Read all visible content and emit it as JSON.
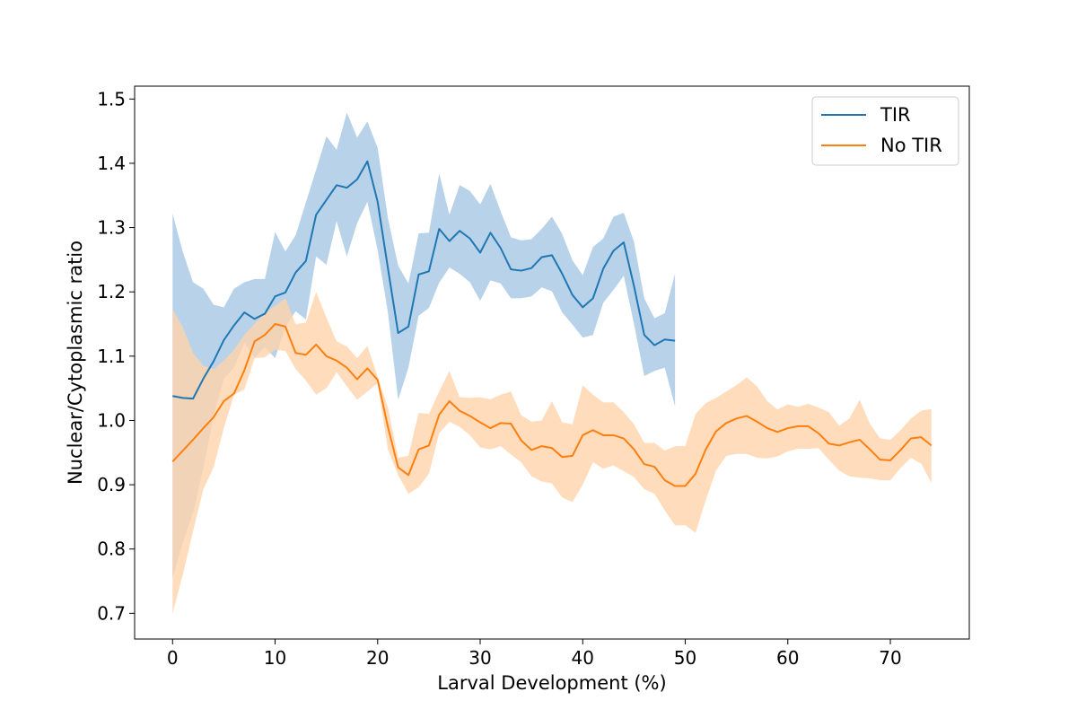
{
  "chart_data": {
    "type": "line",
    "xlabel": "Larval Development (%)",
    "ylabel": "Nuclear/Cytoplasmic ratio",
    "xlim": [
      -3.7,
      77.7
    ],
    "ylim": [
      0.66,
      1.52
    ],
    "xticks": [
      0,
      10,
      20,
      30,
      40,
      50,
      60,
      70
    ],
    "yticks": [
      0.7,
      0.8,
      0.9,
      1.0,
      1.1,
      1.2,
      1.3,
      1.4,
      1.5
    ],
    "xtick_labels": [
      "0",
      "10",
      "20",
      "30",
      "40",
      "50",
      "60",
      "70"
    ],
    "ytick_labels": [
      "0.7",
      "0.8",
      "0.9",
      "1.0",
      "1.1",
      "1.2",
      "1.3",
      "1.4",
      "1.5"
    ],
    "grid": false,
    "legend_position": "top-right",
    "series": [
      {
        "name": "TIR",
        "color": "#1f77b4",
        "band_color": "#a6c8e4",
        "x": [
          0,
          1,
          2,
          3,
          4,
          5,
          6,
          7,
          8,
          9,
          10,
          11,
          12,
          13,
          14,
          15,
          16,
          17,
          18,
          19,
          20,
          21,
          22,
          23,
          24,
          25,
          26,
          27,
          28,
          29,
          30,
          31,
          32,
          33,
          34,
          35,
          36,
          37,
          38,
          39,
          40,
          41,
          42,
          43,
          44,
          45,
          46,
          47,
          48,
          49
        ],
        "y": [
          1.038,
          1.035,
          1.034,
          1.065,
          1.092,
          1.125,
          1.148,
          1.168,
          1.158,
          1.166,
          1.193,
          1.199,
          1.23,
          1.248,
          1.32,
          1.343,
          1.366,
          1.362,
          1.375,
          1.403,
          1.34,
          1.237,
          1.136,
          1.146,
          1.227,
          1.232,
          1.298,
          1.279,
          1.295,
          1.283,
          1.261,
          1.292,
          1.268,
          1.235,
          1.233,
          1.237,
          1.254,
          1.257,
          1.228,
          1.195,
          1.176,
          1.19,
          1.236,
          1.264,
          1.277,
          1.209,
          1.133,
          1.117,
          1.126,
          1.124
        ],
        "upper": [
          1.322,
          1.262,
          1.215,
          1.205,
          1.18,
          1.176,
          1.205,
          1.215,
          1.22,
          1.22,
          1.293,
          1.263,
          1.288,
          1.339,
          1.39,
          1.442,
          1.421,
          1.479,
          1.44,
          1.465,
          1.424,
          1.315,
          1.241,
          1.213,
          1.291,
          1.292,
          1.384,
          1.32,
          1.366,
          1.357,
          1.336,
          1.368,
          1.325,
          1.285,
          1.28,
          1.282,
          1.298,
          1.317,
          1.29,
          1.249,
          1.226,
          1.27,
          1.283,
          1.317,
          1.323,
          1.278,
          1.19,
          1.159,
          1.167,
          1.228
        ],
        "lower": [
          0.755,
          0.81,
          0.856,
          0.926,
          1.007,
          1.065,
          1.082,
          1.121,
          1.097,
          1.114,
          1.097,
          1.145,
          1.17,
          1.157,
          1.255,
          1.242,
          1.31,
          1.255,
          1.307,
          1.34,
          1.265,
          1.168,
          1.032,
          1.082,
          1.163,
          1.175,
          1.214,
          1.238,
          1.228,
          1.215,
          1.186,
          1.218,
          1.213,
          1.19,
          1.19,
          1.193,
          1.207,
          1.201,
          1.168,
          1.149,
          1.129,
          1.133,
          1.183,
          1.203,
          1.225,
          1.15,
          1.069,
          1.077,
          1.082,
          1.022
        ]
      },
      {
        "name": "No TIR",
        "color": "#ff7f0e",
        "band_color": "#ffd3ab",
        "x": [
          0,
          1,
          2,
          3,
          4,
          5,
          6,
          7,
          8,
          9,
          10,
          11,
          12,
          13,
          14,
          15,
          16,
          17,
          18,
          19,
          20,
          21,
          22,
          23,
          24,
          25,
          26,
          27,
          28,
          29,
          30,
          31,
          32,
          33,
          34,
          35,
          36,
          37,
          38,
          39,
          40,
          41,
          42,
          43,
          44,
          45,
          46,
          47,
          48,
          49,
          50,
          51,
          52,
          53,
          54,
          55,
          56,
          57,
          58,
          59,
          60,
          61,
          62,
          63,
          64,
          65,
          66,
          67,
          68,
          69,
          70,
          71,
          72,
          73,
          74
        ],
        "y": [
          0.936,
          0.953,
          0.97,
          0.988,
          1.005,
          1.03,
          1.042,
          1.078,
          1.123,
          1.133,
          1.15,
          1.146,
          1.105,
          1.102,
          1.118,
          1.1,
          1.093,
          1.082,
          1.064,
          1.081,
          1.063,
          0.99,
          0.927,
          0.915,
          0.955,
          0.961,
          1.009,
          1.03,
          1.015,
          1.007,
          0.997,
          0.988,
          0.996,
          0.995,
          0.969,
          0.954,
          0.96,
          0.957,
          0.943,
          0.945,
          0.977,
          0.985,
          0.977,
          0.977,
          0.972,
          0.955,
          0.932,
          0.928,
          0.907,
          0.898,
          0.898,
          0.917,
          0.955,
          0.983,
          0.996,
          1.003,
          1.007,
          0.998,
          0.988,
          0.982,
          0.988,
          0.991,
          0.991,
          0.98,
          0.964,
          0.961,
          0.966,
          0.97,
          0.955,
          0.939,
          0.938,
          0.954,
          0.972,
          0.974,
          0.961
        ],
        "upper": [
          1.173,
          1.145,
          1.105,
          1.085,
          1.08,
          1.093,
          1.11,
          1.133,
          1.15,
          1.168,
          1.178,
          1.19,
          1.15,
          1.152,
          1.2,
          1.16,
          1.123,
          1.115,
          1.097,
          1.116,
          1.068,
          1.02,
          0.942,
          0.945,
          1.012,
          1.01,
          1.045,
          1.077,
          1.036,
          1.035,
          1.036,
          1.033,
          1.04,
          1.045,
          1.008,
          0.998,
          1.0,
          1.03,
          0.997,
          0.994,
          1.055,
          1.04,
          1.028,
          1.028,
          1.013,
          0.994,
          0.965,
          0.965,
          0.953,
          0.96,
          0.96,
          1.01,
          1.027,
          1.035,
          1.045,
          1.055,
          1.067,
          1.053,
          1.03,
          1.017,
          1.025,
          1.021,
          1.026,
          1.02,
          1.013,
          0.992,
          1.003,
          1.032,
          0.995,
          0.972,
          0.97,
          0.985,
          1.003,
          1.015,
          1.018
        ],
        "lower": [
          0.7,
          0.76,
          0.828,
          0.893,
          0.927,
          0.988,
          1.04,
          1.048,
          1.097,
          1.098,
          1.11,
          1.108,
          1.08,
          1.062,
          1.04,
          1.05,
          1.075,
          1.053,
          1.032,
          1.045,
          1.058,
          0.955,
          0.915,
          0.886,
          0.896,
          0.917,
          0.98,
          0.998,
          0.99,
          0.977,
          0.958,
          0.955,
          0.96,
          0.947,
          0.935,
          0.913,
          0.905,
          0.902,
          0.88,
          0.873,
          0.9,
          0.935,
          0.925,
          0.93,
          0.921,
          0.912,
          0.893,
          0.886,
          0.86,
          0.837,
          0.837,
          0.825,
          0.876,
          0.922,
          0.945,
          0.948,
          0.948,
          0.942,
          0.941,
          0.944,
          0.952,
          0.956,
          0.956,
          0.957,
          0.939,
          0.922,
          0.913,
          0.911,
          0.91,
          0.907,
          0.907,
          0.926,
          0.942,
          0.933,
          0.903
        ]
      }
    ]
  }
}
